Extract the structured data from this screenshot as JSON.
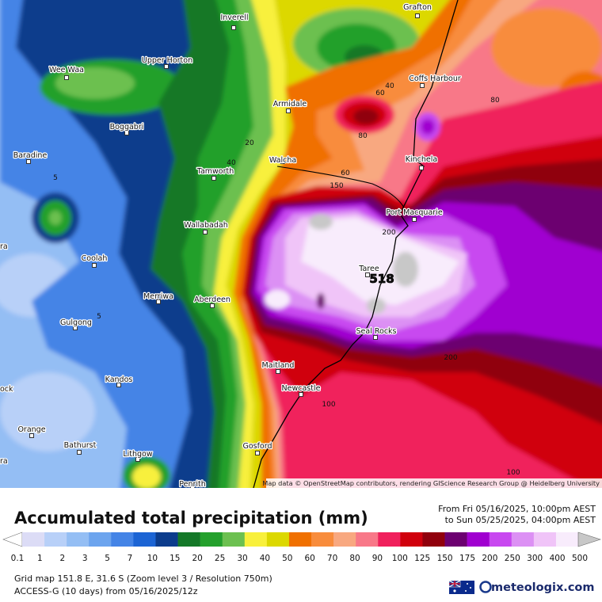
{
  "map": {
    "towns": [
      "Inverell",
      "Grafton",
      "Upper Horton",
      "Wee Waa",
      "Coffs Harbour",
      "Armidale",
      "Boggabri",
      "Baradine",
      "Walcha",
      "Kinchela",
      "Tamworth",
      "Port Macquarie",
      "Wallabadah",
      "Coolah",
      "Taree",
      "Merriwa",
      "Aberdeen",
      "Gulgong",
      "Seal Rocks",
      "Maitland",
      "Kandos",
      "Newcastle",
      "Orange",
      "Bathurst",
      "Lithgow",
      "Gosford",
      "Penrith"
    ],
    "edge_labels": [
      "ra",
      "ock",
      "ra"
    ],
    "contour_labels": [
      "40",
      "60",
      "80",
      "80",
      "20",
      "5",
      "40",
      "60",
      "150",
      "200",
      "518",
      "5",
      "200",
      "100",
      "100"
    ],
    "attribution": "Map data © OpenStreetMap contributors, rendering GIScience Research Group @ Heidelberg University"
  },
  "legend": {
    "title": "Accumulated total precipitation (mm)",
    "period_from": "From Fri 05/16/2025, 10:00pm AEST",
    "period_to": "to Sun 05/25/2025, 04:00pm AEST",
    "labels": [
      "0.1",
      "1",
      "2",
      "3",
      "5",
      "7",
      "10",
      "15",
      "20",
      "25",
      "30",
      "40",
      "50",
      "60",
      "70",
      "80",
      "90",
      "100",
      "125",
      "150",
      "175",
      "200",
      "250",
      "300",
      "400",
      "500"
    ],
    "colors": [
      "#dcdcf6",
      "#b8d0f8",
      "#94bef4",
      "#6ca4ee",
      "#4484e6",
      "#1c64d4",
      "#0c3c8c",
      "#147828",
      "#24a02c",
      "#6cc050",
      "#f8f03c",
      "#dcd800",
      "#f07000",
      "#f88c3c",
      "#f8a880",
      "#f87888",
      "#f0205c",
      "#d0000c",
      "#90000c",
      "#6c0070",
      "#a000d0",
      "#c848f0",
      "#dc90f4",
      "#f0c4f8",
      "#f8ecfc"
    ],
    "under_color": "#ffffff",
    "over_color": "#c8c8c8"
  },
  "footer": {
    "grid_info": "Grid map 151.8 E, 31.6 S (Zoom level 3 / Resolution 750m)",
    "model_info": "ACCESS-G (10 days) from 05/16/2025/12z",
    "brand": "meteologix.com"
  }
}
